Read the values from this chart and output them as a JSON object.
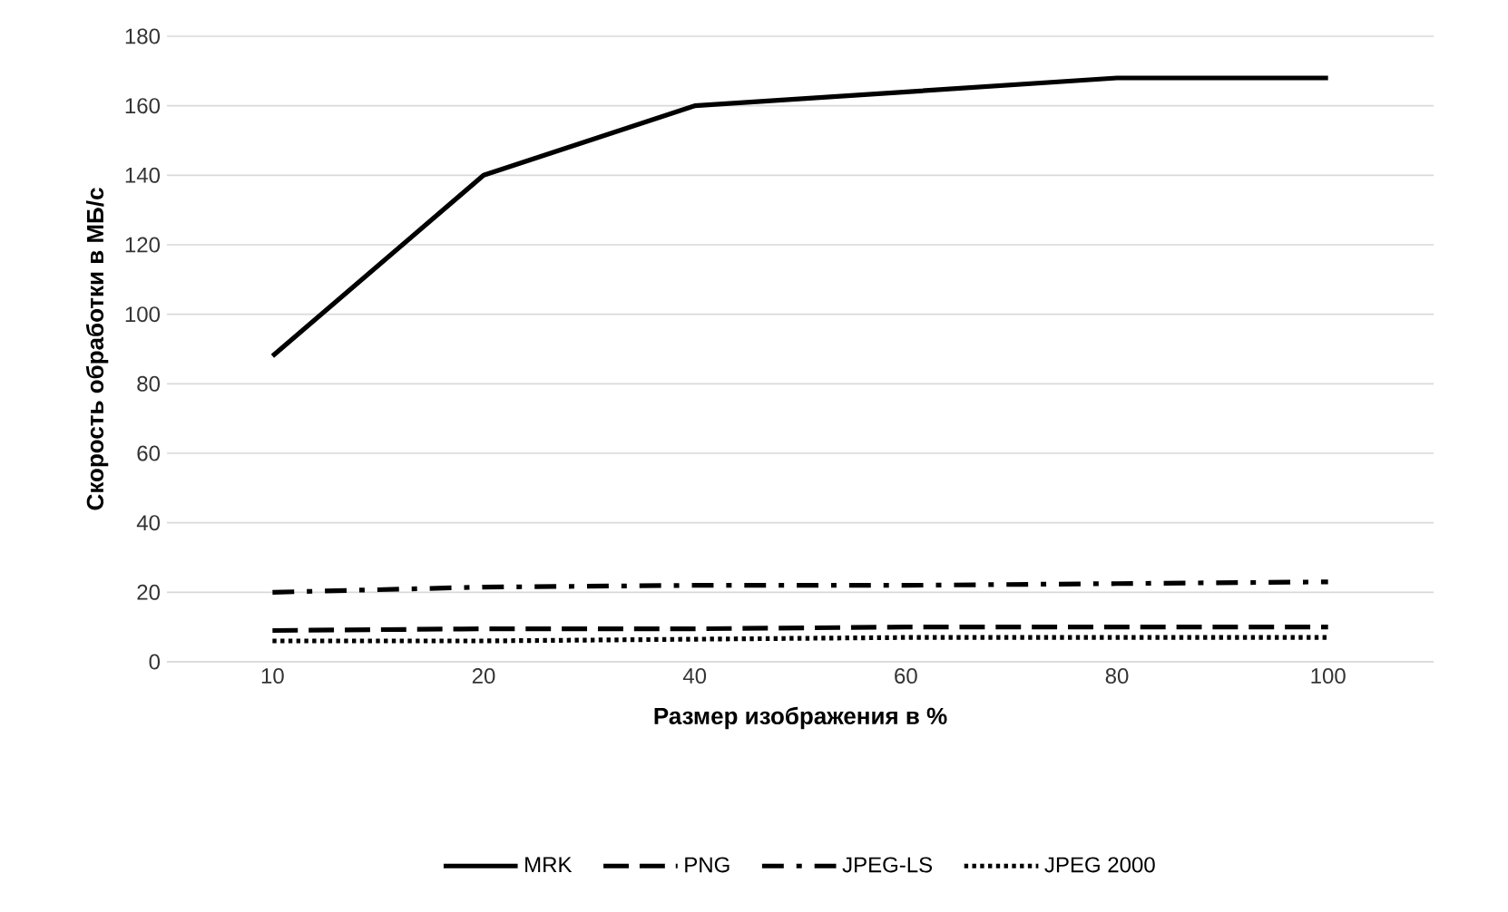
{
  "chart_data": {
    "type": "line",
    "xlabel": "Размер изображения в %",
    "ylabel": "Скорость обработки в МБ/с",
    "categories": [
      "10",
      "20",
      "40",
      "60",
      "80",
      "100"
    ],
    "series": [
      {
        "name": "MRK",
        "color": "#000000",
        "line_style": "solid",
        "values": [
          88,
          140,
          160,
          164,
          168,
          168
        ]
      },
      {
        "name": "PNG",
        "color": "#000000",
        "line_style": "dashed",
        "values": [
          9,
          9.5,
          9.5,
          10,
          10,
          10
        ]
      },
      {
        "name": "JPEG-LS",
        "color": "#000000",
        "line_style": "dashdot",
        "values": [
          20,
          21.5,
          22,
          22,
          22.5,
          23
        ]
      },
      {
        "name": "JPEG 2000",
        "color": "#000000",
        "line_style": "dotted",
        "values": [
          6,
          6,
          6.5,
          7,
          7,
          7
        ]
      }
    ],
    "ylim": [
      0,
      180
    ],
    "yticks": [
      0,
      20,
      40,
      60,
      80,
      100,
      120,
      140,
      160,
      180
    ],
    "grid": "y",
    "legend": "bottom",
    "marker": "none"
  }
}
